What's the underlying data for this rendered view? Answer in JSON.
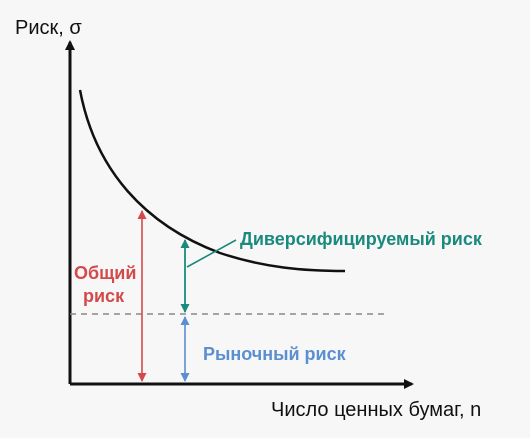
{
  "axes": {
    "y_label": "Риск, σ",
    "x_label": "Число ценных бумаг, n"
  },
  "labels": {
    "total_risk_line1": "Общий",
    "total_risk_line2": "риск",
    "diversifiable_risk": "Диверсифицируемый риск",
    "market_risk": "Рыночный риск"
  },
  "colors": {
    "axis": "#111111",
    "curve": "#111111",
    "total_risk": "#d24a4a",
    "diversifiable_risk": "#1a8a7e",
    "market_risk": "#5b8fd1",
    "market_level_line": "#888888"
  }
}
